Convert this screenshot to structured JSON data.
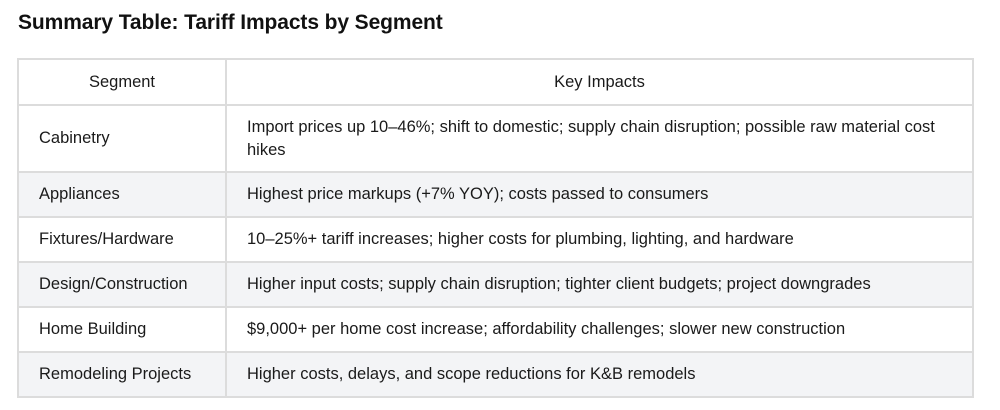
{
  "title": "Summary Table: Tariff Impacts by Segment",
  "table": {
    "headers": {
      "segment": "Segment",
      "impacts": "Key Impacts"
    },
    "rows": [
      {
        "segment": "Cabinetry",
        "impacts": "Import prices up 10–46%; shift to domestic; supply chain disruption; possible raw material cost hikes"
      },
      {
        "segment": "Appliances",
        "impacts": "Highest price markups (+7% YOY); costs passed to consumers"
      },
      {
        "segment": "Fixtures/Hardware",
        "impacts": "10–25%+ tariff increases; higher costs for plumbing, lighting, and hardware"
      },
      {
        "segment": "Design/Construction",
        "impacts": "Higher input costs; supply chain disruption; tighter client budgets; project downgrades"
      },
      {
        "segment": "Home Building",
        "impacts": "$9,000+ per home cost increase; affordability challenges; slower new construction"
      },
      {
        "segment": "Remodeling Projects",
        "impacts": "Higher costs, delays, and scope reductions for K&B remodels"
      }
    ]
  }
}
